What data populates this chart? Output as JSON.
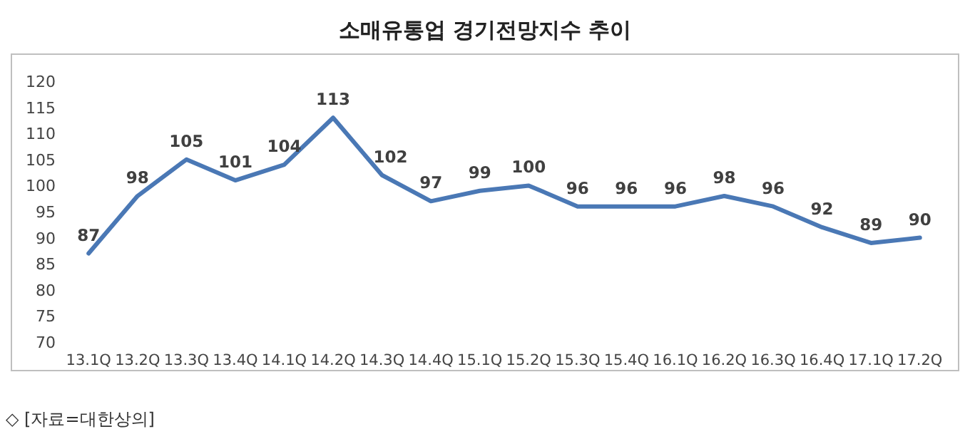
{
  "chart_data": {
    "type": "line",
    "title": "소매유통업 경기전망지수 추이",
    "categories": [
      "13.1Q",
      "13.2Q",
      "13.3Q",
      "13.4Q",
      "14.1Q",
      "14.2Q",
      "14.3Q",
      "14.4Q",
      "15.1Q",
      "15.2Q",
      "15.3Q",
      "15.4Q",
      "16.1Q",
      "16.2Q",
      "16.3Q",
      "16.4Q",
      "17.1Q",
      "17.2Q"
    ],
    "series": [
      {
        "color": "#4a78b5",
        "values": [
          87,
          98,
          105,
          101,
          104,
          113,
          102,
          97,
          99,
          100,
          96,
          96,
          96,
          98,
          96,
          92,
          89,
          90
        ]
      }
    ],
    "ylim": [
      70,
      120
    ],
    "yticks": [
      70,
      75,
      80,
      85,
      90,
      95,
      100,
      105,
      110,
      115,
      120
    ],
    "data_labels": true,
    "grid": false,
    "marker": "none",
    "line_style": "solid",
    "annotations": [
      "◇ [자료=대한상의]"
    ]
  }
}
